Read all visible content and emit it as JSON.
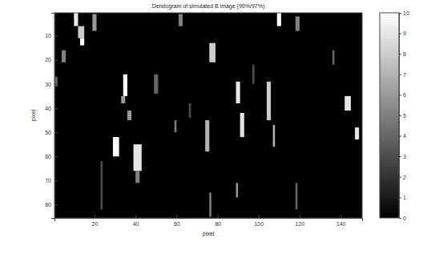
{
  "chart_data": {
    "type": "heatmap",
    "title": "Dendogram of simulated B image (99%/97%)",
    "x_label": "pixel",
    "y_label": "pixel",
    "xlim": [
      0.5,
      150.5
    ],
    "ylim": [
      0.5,
      85.5
    ],
    "xticks": [
      20,
      40,
      60,
      80,
      100,
      120,
      140
    ],
    "yticks": [
      10,
      20,
      30,
      40,
      50,
      60,
      70,
      80
    ],
    "colorbar_range": [
      0,
      10
    ],
    "colorbar_ticks": [
      0,
      1,
      2,
      3,
      4,
      5,
      6,
      7,
      8,
      9,
      10
    ],
    "cells": [
      {
        "x": [
          10,
          12
        ],
        "y": [
          0.5,
          6
        ],
        "value": 9
      },
      {
        "x": [
          12,
          15
        ],
        "y": [
          6,
          11
        ],
        "value": 8
      },
      {
        "x": [
          13,
          15
        ],
        "y": [
          11,
          14
        ],
        "value": 10
      },
      {
        "x": [
          4,
          6
        ],
        "y": [
          16,
          21
        ],
        "value": 5
      },
      {
        "x": [
          0.5,
          2
        ],
        "y": [
          27,
          31
        ],
        "value": 4
      },
      {
        "x": [
          19,
          21
        ],
        "y": [
          1,
          8
        ],
        "value": 6
      },
      {
        "x": [
          34,
          36
        ],
        "y": [
          26,
          35
        ],
        "value": 10
      },
      {
        "x": [
          33,
          35
        ],
        "y": [
          35,
          38
        ],
        "value": 6
      },
      {
        "x": [
          36,
          38
        ],
        "y": [
          41,
          45
        ],
        "value": 6
      },
      {
        "x": [
          29,
          32
        ],
        "y": [
          52,
          60
        ],
        "value": 10
      },
      {
        "x": [
          39,
          43
        ],
        "y": [
          55,
          66
        ],
        "value": 9
      },
      {
        "x": [
          40,
          42
        ],
        "y": [
          66,
          71
        ],
        "value": 5
      },
      {
        "x": [
          49,
          51
        ],
        "y": [
          26,
          34
        ],
        "value": 4
      },
      {
        "x": [
          23,
          24
        ],
        "y": [
          62,
          82
        ],
        "value": 3
      },
      {
        "x": [
          59,
          60
        ],
        "y": [
          45,
          50
        ],
        "value": 5
      },
      {
        "x": [
          61,
          63
        ],
        "y": [
          1,
          6
        ],
        "value": 5
      },
      {
        "x": [
          74,
          76
        ],
        "y": [
          45,
          58
        ],
        "value": 7
      },
      {
        "x": [
          76,
          79
        ],
        "y": [
          13,
          21
        ],
        "value": 8
      },
      {
        "x": [
          76,
          77
        ],
        "y": [
          75,
          85
        ],
        "value": 5
      },
      {
        "x": [
          89,
          91
        ],
        "y": [
          29,
          38
        ],
        "value": 9
      },
      {
        "x": [
          91,
          93
        ],
        "y": [
          42,
          52
        ],
        "value": 9
      },
      {
        "x": [
          89,
          90
        ],
        "y": [
          71,
          77
        ],
        "value": 6
      },
      {
        "x": [
          104,
          106
        ],
        "y": [
          29,
          45
        ],
        "value": 8
      },
      {
        "x": [
          109,
          111
        ],
        "y": [
          0.5,
          6
        ],
        "value": 10
      },
      {
        "x": [
          107,
          108
        ],
        "y": [
          47,
          56
        ],
        "value": 7
      },
      {
        "x": [
          118,
          120
        ],
        "y": [
          2,
          8
        ],
        "value": 5
      },
      {
        "x": [
          118,
          119
        ],
        "y": [
          71,
          82
        ],
        "value": 4
      },
      {
        "x": [
          136,
          137
        ],
        "y": [
          16,
          22
        ],
        "value": 4
      },
      {
        "x": [
          142,
          145
        ],
        "y": [
          35,
          41
        ],
        "value": 9
      },
      {
        "x": [
          147,
          149
        ],
        "y": [
          48,
          53
        ],
        "value": 9
      },
      {
        "x": [
          97,
          98
        ],
        "y": [
          22,
          30
        ],
        "value": 3
      },
      {
        "x": [
          66,
          67
        ],
        "y": [
          38,
          44
        ],
        "value": 3
      }
    ]
  }
}
